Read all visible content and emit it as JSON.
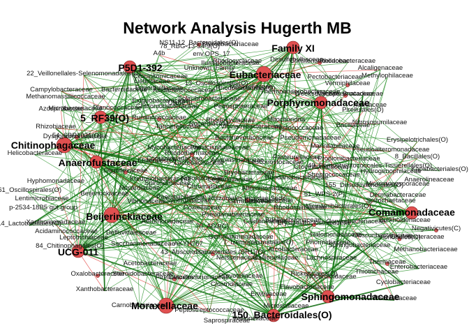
{
  "title": "Network Analysis Hugerth MB",
  "colors": {
    "node": "#e05050",
    "node_small": "#d86060",
    "edge_positive": "#1a8a1a",
    "edge_negative": "#e0302a"
  },
  "hubs": [
    "Eubacteriaceae",
    "Family XI",
    "P5D1-392",
    "Porphyromonadaceae",
    "5_RF39(O)",
    "Chitinophagaceae",
    "Anaerofustaceae",
    "Beijerinckiaceae",
    "UCG-011",
    "Comamonadaceae",
    "Moraxellaceae",
    "Sphingomonadaceae",
    "150_Bacteroidales(O)"
  ],
  "labels": [
    "NS11-12_Bacteroidales(O)",
    "78_RBG-13-54-9(O)",
    "Sterolibacteriaceae",
    "A4b",
    "env.OPS_17",
    "Rhodobacteraceae",
    "Rhodocyclaceae",
    "Desulfobulbaceae",
    "Ilumatobacteraceae",
    "Christensenellaceae",
    "Unknown_Family",
    "Alcaligenaceae",
    "Methylophilaceae",
    "Crocinitomicaceae",
    "Pectobacteriaceae",
    "22_Veillonellales-Selenomonadales(O)",
    "Listeriaceae",
    "13_Oscillospirales(O)",
    "Vermiphilaceae",
    "Eggerthellaceae",
    "Campylobacteraceae",
    "Bacteroidaceae",
    "Weeksellaceae",
    "Brocadiaceae",
    "Methanomassiliicoccaceae",
    "Acidaminococcaceae",
    "Thermoanaerobacteraceae",
    "Mycoplasmataceae",
    "Hafniaceae",
    "Exiguobacteraceae",
    "Clade III",
    "Chthoniobacteraceae",
    "Microbacteriaceae",
    "Planococcaceae",
    "Solirubrobacteraceae",
    "Pedosphaeraceae",
    "Ruminococcaceae",
    "Rhodocyclaceae",
    "Vicinamibacteraceae",
    "Rhizobiaceae",
    "Mitochondria",
    "Peptococcaceae",
    "Nitrosopumilaceae",
    "Bacillaceae",
    "Nocardiaceae",
    "54_SBR1031(O)",
    "Tannerellaceae",
    "Dysgonomonadaceae",
    "Erysipelotrichales(O)",
    "Pseudoalteromonadaceae",
    "8_Bacillales(O)",
    "Mycobacteriaceae",
    "Physicisphaeraceae",
    "Anaplasmataceae",
    "Pasteurellaceae",
    "Helicobacteraceae",
    "Elsterales(O)",
    "49_Peptostreptococcales-Tissierellales(O)",
    "Bryobacteraceae",
    "Rhodanobacteraceae",
    "Streptococcaceae",
    "Hyphomonadaceae",
    "161_Oscillospirales(O)",
    "Oligoflexaceae",
    "Ktedonobacteraceae",
    "Spirosomaceae",
    "155_Desulfovibrionales(O)",
    "Micromonosporaceae",
    "Dermabacteraceae",
    "Nitrospiraceae",
    "Vibrionaceae",
    "p-2534-18B5 gut group",
    "Rhizobiales Incertae Sedis",
    "Lentimicrobiaceae",
    "51_WPS-2(P)",
    "Vicinamibacterales(O)",
    "Gemmataceae",
    "14_Lactobacillales(O)",
    "Acidaminococcaceae",
    "Defluviitaleaceae",
    "Pseudanabaenaceae",
    "Erysipelatoclostridiaceae",
    "Xanthomonadaceae",
    "70_AD3(C)",
    "7_Izemoplasmatales(O)",
    "Leptotrichiaceae",
    "Saccharimonadaceae",
    "Gemmatimonadaceae",
    "84_Chitinophagales(O)",
    "Lachnospiraceae",
    "Thermaceae",
    "AKYH767",
    "Nocardioidaceae",
    "Thiotrichaceae",
    "Acetobacteraceae",
    "Rickettsiales(O)",
    "Cyclobacteriaceae",
    "Xanthobacteraceae",
    "Clostridiaceae",
    "Erwiniaceae",
    "Carnobacteriaceae",
    "Peptostreptococcaceae",
    "Microscillaceae",
    "Saprospiraceae",
    "Veillonellaceae",
    "Flavobacteriaceae",
    "Neisseriaceae",
    "Obscuribacteraceae",
    "43_Absconditabacteriales (SR1)(O)",
    "Burkholderiaceae",
    "Caulobacteraceae",
    "Sphingobacteriaceae",
    "Gallionellaceae",
    "Weeksellaceae",
    "Methanobacteriaceae",
    "Desulfovibrionaceae",
    "Bdellovibrionaceae",
    "Pirellulaceae",
    "Prevotellaceae",
    "Coxiellaceae",
    "Hydrogenophilaceae",
    "Lactobacillaceae",
    "Marinilabiliaceae",
    "Enterobacteriaceae",
    "Rhodospirillaceae",
    "Paenibacillaceae",
    "Negativicutes(C)",
    "Kapabacteriales(O)",
    "Pseudomonadaceae",
    "Moraxellaceae",
    "Pirellulales(O)",
    "Caldilineaceae",
    "Nocardiaceae",
    "Beijerinckiaceae",
    "Crocinitomicaceae",
    "Rhodothermaceae",
    "Steroidobacteraceae",
    "Leuconostocaceae",
    "Synergistaceae",
    "Anaerolineaceae",
    "Propionibacteriaceae",
    "Bacteriovoracaceae",
    "Corynebacteriaceae",
    "Phormidiaceae",
    "Oxalobacteraceae",
    "Legionellaceae",
    "Spirochaetaceae",
    "Aeromonadaceae",
    "Shewanellaceae",
    "Arcobacteraceae",
    "Chromatiaceae",
    "Comamonadaceae",
    "Alteromonadaceae",
    "Vibrionales(O)",
    "Halomonadaceae",
    "Rhodobacterales(O)",
    "Azospirillaceae"
  ]
}
